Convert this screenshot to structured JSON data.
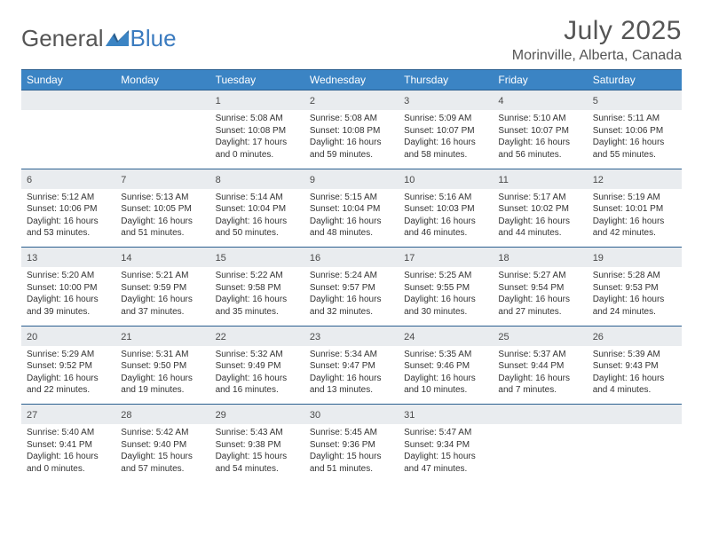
{
  "logo": {
    "word1": "General",
    "word2": "Blue"
  },
  "title": "July 2025",
  "location": "Morinville, Alberta, Canada",
  "colors": {
    "header_bg": "#3b84c4",
    "header_border": "#2b5f8f",
    "daynum_bg": "#e9ecef",
    "text": "#333333",
    "logo_gray": "#555555",
    "logo_blue": "#3b7bbf"
  },
  "day_headers": [
    "Sunday",
    "Monday",
    "Tuesday",
    "Wednesday",
    "Thursday",
    "Friday",
    "Saturday"
  ],
  "weeks": [
    [
      null,
      null,
      {
        "n": "1",
        "sr": "5:08 AM",
        "ss": "10:08 PM",
        "dl": "17 hours and 0 minutes."
      },
      {
        "n": "2",
        "sr": "5:08 AM",
        "ss": "10:08 PM",
        "dl": "16 hours and 59 minutes."
      },
      {
        "n": "3",
        "sr": "5:09 AM",
        "ss": "10:07 PM",
        "dl": "16 hours and 58 minutes."
      },
      {
        "n": "4",
        "sr": "5:10 AM",
        "ss": "10:07 PM",
        "dl": "16 hours and 56 minutes."
      },
      {
        "n": "5",
        "sr": "5:11 AM",
        "ss": "10:06 PM",
        "dl": "16 hours and 55 minutes."
      }
    ],
    [
      {
        "n": "6",
        "sr": "5:12 AM",
        "ss": "10:06 PM",
        "dl": "16 hours and 53 minutes."
      },
      {
        "n": "7",
        "sr": "5:13 AM",
        "ss": "10:05 PM",
        "dl": "16 hours and 51 minutes."
      },
      {
        "n": "8",
        "sr": "5:14 AM",
        "ss": "10:04 PM",
        "dl": "16 hours and 50 minutes."
      },
      {
        "n": "9",
        "sr": "5:15 AM",
        "ss": "10:04 PM",
        "dl": "16 hours and 48 minutes."
      },
      {
        "n": "10",
        "sr": "5:16 AM",
        "ss": "10:03 PM",
        "dl": "16 hours and 46 minutes."
      },
      {
        "n": "11",
        "sr": "5:17 AM",
        "ss": "10:02 PM",
        "dl": "16 hours and 44 minutes."
      },
      {
        "n": "12",
        "sr": "5:19 AM",
        "ss": "10:01 PM",
        "dl": "16 hours and 42 minutes."
      }
    ],
    [
      {
        "n": "13",
        "sr": "5:20 AM",
        "ss": "10:00 PM",
        "dl": "16 hours and 39 minutes."
      },
      {
        "n": "14",
        "sr": "5:21 AM",
        "ss": "9:59 PM",
        "dl": "16 hours and 37 minutes."
      },
      {
        "n": "15",
        "sr": "5:22 AM",
        "ss": "9:58 PM",
        "dl": "16 hours and 35 minutes."
      },
      {
        "n": "16",
        "sr": "5:24 AM",
        "ss": "9:57 PM",
        "dl": "16 hours and 32 minutes."
      },
      {
        "n": "17",
        "sr": "5:25 AM",
        "ss": "9:55 PM",
        "dl": "16 hours and 30 minutes."
      },
      {
        "n": "18",
        "sr": "5:27 AM",
        "ss": "9:54 PM",
        "dl": "16 hours and 27 minutes."
      },
      {
        "n": "19",
        "sr": "5:28 AM",
        "ss": "9:53 PM",
        "dl": "16 hours and 24 minutes."
      }
    ],
    [
      {
        "n": "20",
        "sr": "5:29 AM",
        "ss": "9:52 PM",
        "dl": "16 hours and 22 minutes."
      },
      {
        "n": "21",
        "sr": "5:31 AM",
        "ss": "9:50 PM",
        "dl": "16 hours and 19 minutes."
      },
      {
        "n": "22",
        "sr": "5:32 AM",
        "ss": "9:49 PM",
        "dl": "16 hours and 16 minutes."
      },
      {
        "n": "23",
        "sr": "5:34 AM",
        "ss": "9:47 PM",
        "dl": "16 hours and 13 minutes."
      },
      {
        "n": "24",
        "sr": "5:35 AM",
        "ss": "9:46 PM",
        "dl": "16 hours and 10 minutes."
      },
      {
        "n": "25",
        "sr": "5:37 AM",
        "ss": "9:44 PM",
        "dl": "16 hours and 7 minutes."
      },
      {
        "n": "26",
        "sr": "5:39 AM",
        "ss": "9:43 PM",
        "dl": "16 hours and 4 minutes."
      }
    ],
    [
      {
        "n": "27",
        "sr": "5:40 AM",
        "ss": "9:41 PM",
        "dl": "16 hours and 0 minutes."
      },
      {
        "n": "28",
        "sr": "5:42 AM",
        "ss": "9:40 PM",
        "dl": "15 hours and 57 minutes."
      },
      {
        "n": "29",
        "sr": "5:43 AM",
        "ss": "9:38 PM",
        "dl": "15 hours and 54 minutes."
      },
      {
        "n": "30",
        "sr": "5:45 AM",
        "ss": "9:36 PM",
        "dl": "15 hours and 51 minutes."
      },
      {
        "n": "31",
        "sr": "5:47 AM",
        "ss": "9:34 PM",
        "dl": "15 hours and 47 minutes."
      },
      null,
      null
    ]
  ],
  "labels": {
    "sunrise": "Sunrise: ",
    "sunset": "Sunset: ",
    "daylight": "Daylight: "
  }
}
